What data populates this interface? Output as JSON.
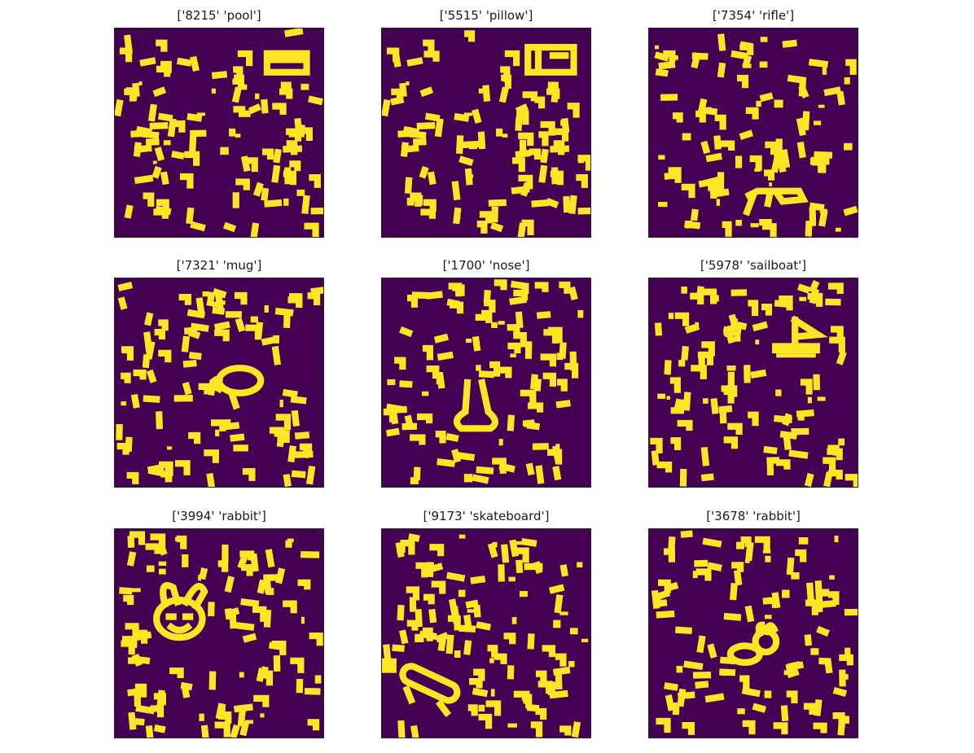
{
  "figure": {
    "background_color": "#ffffff",
    "image_background_color": "#440154",
    "stroke_color": "#fde725",
    "panels": [
      {
        "id": "8215",
        "label": "pool",
        "title": "['8215' 'pool']",
        "subject_icon": "pool-drawing-icon"
      },
      {
        "id": "5515",
        "label": "pillow",
        "title": "['5515' 'pillow']",
        "subject_icon": "pillow-drawing-icon"
      },
      {
        "id": "7354",
        "label": "rifle",
        "title": "['7354' 'rifle']",
        "subject_icon": "rifle-drawing-icon"
      },
      {
        "id": "7321",
        "label": "mug",
        "title": "['7321' 'mug']",
        "subject_icon": "mug-drawing-icon"
      },
      {
        "id": "1700",
        "label": "nose",
        "title": "['1700' 'nose']",
        "subject_icon": "nose-drawing-icon"
      },
      {
        "id": "5978",
        "label": "sailboat",
        "title": "['5978' 'sailboat']",
        "subject_icon": "sailboat-drawing-icon"
      },
      {
        "id": "3994",
        "label": "rabbit",
        "title": "['3994' 'rabbit']",
        "subject_icon": "rabbit-drawing-icon"
      },
      {
        "id": "9173",
        "label": "skateboard",
        "title": "['9173' 'skateboard']",
        "subject_icon": "skateboard-drawing-icon"
      },
      {
        "id": "3678",
        "label": "rabbit",
        "title": "['3678' 'rabbit']",
        "subject_icon": "rabbit-drawing-icon"
      }
    ]
  }
}
